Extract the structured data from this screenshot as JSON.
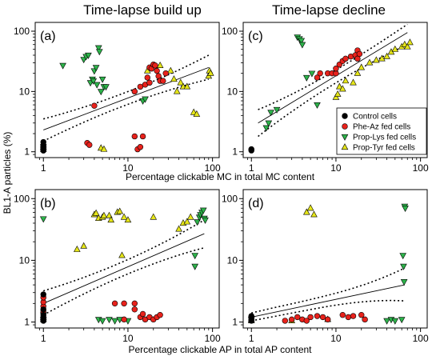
{
  "column_titles": [
    "Time-lapse build up",
    "Time-lapse decline"
  ],
  "xlabel_top": "Percentage clickable MC in total MC content",
  "xlabel_bottom": "Percentage clickable AP in total AP content",
  "ylabel": "BL1-A particles (%)",
  "legend": {
    "position": "inside-lower-right of panel (c)",
    "entries": [
      {
        "name": "Control cells",
        "marker": "circle",
        "color": "#000000"
      },
      {
        "name": "Phe-Az fed cells",
        "marker": "circle",
        "color": "#e8221c"
      },
      {
        "name": "Prop-Lys fed cells",
        "marker": "triangle-down",
        "color": "#2db34a"
      },
      {
        "name": "Prop-Tyr fed cells",
        "marker": "triangle-up",
        "color": "#e6e619"
      }
    ]
  },
  "chart_data": [
    {
      "panel": "(a)",
      "type": "scatter",
      "xscale": "log",
      "yscale": "log",
      "xlim": [
        0.8,
        120
      ],
      "ylim": [
        0.8,
        140
      ],
      "xticks": [
        1,
        10,
        100
      ],
      "yticks": [
        1,
        10,
        100
      ],
      "fit": {
        "x": [
          1,
          90
        ],
        "y": [
          2.3,
          25
        ],
        "ci_upper": [
          3.5,
          40
        ],
        "ci_lower": [
          1.5,
          16
        ]
      },
      "series": [
        {
          "name": "Control cells",
          "points": [
            [
              1,
              1.05
            ],
            [
              1,
              1.1
            ],
            [
              1,
              1.2
            ],
            [
              1,
              1.3
            ],
            [
              1,
              1.45
            ]
          ]
        },
        {
          "name": "Phe-Az fed cells",
          "points": [
            [
              1,
              1.05
            ],
            [
              1,
              1.15
            ],
            [
              1,
              1.3
            ],
            [
              3.3,
              1.4
            ],
            [
              3.5,
              1.3
            ],
            [
              4,
              5.8
            ],
            [
              12,
              1.8
            ],
            [
              13,
              1.1
            ],
            [
              14,
              1.2
            ],
            [
              15,
              1.8
            ],
            [
              12,
              10
            ],
            [
              14,
              12
            ],
            [
              16,
              13
            ],
            [
              17,
              17
            ],
            [
              18,
              25
            ],
            [
              19,
              24
            ],
            [
              20,
              28
            ],
            [
              21,
              27
            ],
            [
              22,
              22
            ],
            [
              23,
              18
            ],
            [
              24,
              15
            ],
            [
              26,
              15
            ],
            [
              28,
              20
            ],
            [
              18,
              14
            ]
          ]
        },
        {
          "name": "Prop-Lys fed cells",
          "points": [
            [
              1,
              1.1
            ],
            [
              1,
              1.2
            ],
            [
              1.7,
              27
            ],
            [
              3,
              34
            ],
            [
              3.2,
              38
            ],
            [
              3.4,
              40
            ],
            [
              3.6,
              14
            ],
            [
              3.8,
              16
            ],
            [
              3.9,
              15
            ],
            [
              4,
              22
            ],
            [
              4.2,
              25
            ],
            [
              4.3,
              13
            ],
            [
              4.5,
              53
            ],
            [
              4.6,
              46
            ],
            [
              4.8,
              10
            ],
            [
              5,
              16
            ],
            [
              5.2,
              12
            ],
            [
              5.5,
              12
            ],
            [
              15,
              7
            ],
            [
              16,
              7.5
            ]
          ]
        },
        {
          "name": "Prop-Tyr fed cells",
          "points": [
            [
              1,
              1.1
            ],
            [
              1,
              1.2
            ],
            [
              4.8,
              1.15
            ],
            [
              5.2,
              1.1
            ],
            [
              17,
              22
            ],
            [
              24,
              27
            ],
            [
              32,
              22
            ],
            [
              35,
              16
            ],
            [
              38,
              10
            ],
            [
              42,
              14
            ],
            [
              45,
              12
            ],
            [
              50,
              12
            ],
            [
              60,
              4.5
            ],
            [
              65,
              4.2
            ],
            [
              90,
              18
            ],
            [
              92,
              22
            ],
            [
              95,
              20
            ]
          ]
        }
      ]
    },
    {
      "panel": "(c)",
      "type": "scatter",
      "xscale": "log",
      "yscale": "log",
      "xlim": [
        0.8,
        120
      ],
      "ylim": [
        0.8,
        140
      ],
      "xticks": [
        1,
        10,
        100
      ],
      "yticks": [
        1,
        10,
        100
      ],
      "fit": {
        "x": [
          1.2,
          70
        ],
        "y": [
          3,
          95
        ],
        "ci_upper": [
          5,
          130
        ],
        "ci_lower": [
          1.8,
          60
        ]
      },
      "series": [
        {
          "name": "Control cells",
          "points": [
            [
              1,
              1.05
            ],
            [
              1,
              1.1
            ]
          ]
        },
        {
          "name": "Phe-Az fed cells",
          "points": [
            [
              1,
              1.1
            ],
            [
              6,
              17
            ],
            [
              6.5,
              20
            ],
            [
              8,
              20
            ],
            [
              9,
              20
            ],
            [
              10,
              20
            ],
            [
              10,
              24
            ],
            [
              11,
              28
            ],
            [
              12,
              32
            ],
            [
              13,
              35
            ],
            [
              15,
              38
            ],
            [
              17,
              40
            ],
            [
              18,
              48
            ],
            [
              18,
              35
            ],
            [
              19,
              42
            ]
          ]
        },
        {
          "name": "Prop-Lys fed cells",
          "points": [
            [
              1.5,
              2.5
            ],
            [
              1.6,
              3
            ],
            [
              1.7,
              4.5
            ],
            [
              2,
              5
            ],
            [
              3.5,
              80
            ],
            [
              3.7,
              75
            ],
            [
              3.9,
              70
            ],
            [
              4,
              60
            ],
            [
              4.5,
              17
            ],
            [
              5.2,
              20
            ],
            [
              6,
              6
            ]
          ]
        },
        {
          "name": "Prop-Tyr fed cells",
          "points": [
            [
              10,
              8
            ],
            [
              10.5,
              9
            ],
            [
              11,
              12
            ],
            [
              12,
              11
            ],
            [
              13,
              15
            ],
            [
              16,
              14
            ],
            [
              18,
              20
            ],
            [
              20,
              25
            ],
            [
              25,
              30
            ],
            [
              30,
              33
            ],
            [
              35,
              35
            ],
            [
              40,
              38
            ],
            [
              45,
              45
            ],
            [
              50,
              50
            ],
            [
              60,
              55
            ],
            [
              65,
              60
            ],
            [
              70,
              55
            ],
            [
              75,
              65
            ]
          ]
        }
      ]
    },
    {
      "panel": "(b)",
      "type": "scatter",
      "xscale": "log",
      "yscale": "log",
      "xlim": [
        0.8,
        120
      ],
      "ylim": [
        0.8,
        140
      ],
      "xticks": [
        1,
        10,
        100
      ],
      "yticks": [
        1,
        10,
        100
      ],
      "fit": {
        "x": [
          1,
          80
        ],
        "y": [
          2,
          27
        ],
        "ci_upper": [
          3.2,
          45
        ],
        "ci_lower": [
          1.3,
          16
        ]
      },
      "series": [
        {
          "name": "Control cells",
          "points": [
            [
              1,
              1.05
            ],
            [
              1,
              1.1
            ],
            [
              1,
              1.15
            ],
            [
              1,
              1.3
            ],
            [
              1,
              1.6
            ],
            [
              1,
              2.8
            ]
          ]
        },
        {
          "name": "Phe-Az fed cells",
          "points": [
            [
              1,
              1.05
            ],
            [
              1,
              1.2
            ],
            [
              1,
              1.5
            ],
            [
              1,
              1.8
            ],
            [
              1,
              2.1
            ],
            [
              1,
              2.5
            ],
            [
              7,
              2
            ],
            [
              9,
              2
            ],
            [
              12,
              2
            ],
            [
              12,
              1.6
            ],
            [
              14,
              1.2
            ],
            [
              15,
              1.35
            ],
            [
              16,
              1.1
            ],
            [
              18,
              1.2
            ],
            [
              20,
              1.1
            ],
            [
              22,
              1.2
            ],
            [
              24,
              1.3
            ],
            [
              9,
              1.1
            ]
          ]
        },
        {
          "name": "Prop-Lys fed cells",
          "points": [
            [
              1,
              1.1
            ],
            [
              1,
              1.3
            ],
            [
              1,
              47
            ],
            [
              4.5,
              1.1
            ],
            [
              5,
              1.05
            ],
            [
              6,
              1.1
            ],
            [
              7,
              1.05
            ],
            [
              8,
              1.1
            ],
            [
              10,
              1.05
            ],
            [
              62,
              12
            ],
            [
              66,
              42
            ],
            [
              70,
              50
            ],
            [
              72,
              55
            ],
            [
              75,
              60
            ],
            [
              78,
              65
            ],
            [
              80,
              48
            ],
            [
              82,
              45
            ],
            [
              62,
              8
            ]
          ]
        },
        {
          "name": "Prop-Tyr fed cells",
          "points": [
            [
              1,
              1.1
            ],
            [
              1,
              1.2
            ],
            [
              2.5,
              15
            ],
            [
              3,
              17
            ],
            [
              4,
              55
            ],
            [
              4.2,
              58
            ],
            [
              4.5,
              48
            ],
            [
              5,
              50
            ],
            [
              5.2,
              53
            ],
            [
              6,
              53
            ],
            [
              6.3,
              45
            ],
            [
              7.5,
              60
            ],
            [
              8,
              62
            ],
            [
              8.5,
              12
            ],
            [
              9,
              50
            ],
            [
              10,
              45
            ],
            [
              20,
              50
            ],
            [
              40,
              32
            ],
            [
              45,
              40
            ],
            [
              50,
              42
            ],
            [
              55,
              50
            ]
          ]
        }
      ]
    },
    {
      "panel": "(d)",
      "type": "scatter",
      "xscale": "log",
      "yscale": "log",
      "xlim": [
        0.8,
        120
      ],
      "ylim": [
        0.8,
        140
      ],
      "xticks": [
        1,
        10,
        100
      ],
      "yticks": [
        1,
        10,
        100
      ],
      "fit": {
        "x": [
          1,
          65
        ],
        "y": [
          1.2,
          4
        ],
        "ci_upper": [
          1.4,
          7.5
        ],
        "ci_lower": [
          1.05,
          2.2
        ]
      },
      "series": [
        {
          "name": "Control cells",
          "points": [
            [
              1,
              1.05
            ],
            [
              1,
              1.1
            ],
            [
              1,
              1.2
            ],
            [
              1,
              1.25
            ]
          ]
        },
        {
          "name": "Phe-Az fed cells",
          "points": [
            [
              1,
              1.1
            ],
            [
              1,
              1.2
            ],
            [
              2.5,
              1.05
            ],
            [
              3,
              1.1
            ],
            [
              3.5,
              1.2
            ],
            [
              4,
              1.1
            ],
            [
              4.5,
              1.05
            ],
            [
              5,
              1.2
            ],
            [
              6,
              1.25
            ],
            [
              7,
              1.2
            ],
            [
              8,
              1.1
            ],
            [
              12,
              1.3
            ],
            [
              14,
              1.2
            ],
            [
              16,
              1.25
            ],
            [
              20,
              1.3
            ],
            [
              22,
              1.1
            ]
          ]
        },
        {
          "name": "Prop-Lys fed cells",
          "points": [
            [
              1,
              1.1
            ],
            [
              40,
              1.05
            ],
            [
              45,
              1.1
            ],
            [
              50,
              1.05
            ],
            [
              60,
              1.1
            ],
            [
              62,
              12
            ],
            [
              63,
              8
            ],
            [
              64,
              4.5
            ],
            [
              65,
              75
            ],
            [
              66,
              70
            ]
          ]
        },
        {
          "name": "Prop-Tyr fed cells",
          "points": [
            [
              1,
              1.1
            ],
            [
              1,
              1.05
            ],
            [
              4.5,
              60
            ],
            [
              5,
              70
            ],
            [
              5.5,
              55
            ],
            [
              3,
              1.05
            ],
            [
              8,
              1.1
            ]
          ]
        }
      ]
    }
  ]
}
